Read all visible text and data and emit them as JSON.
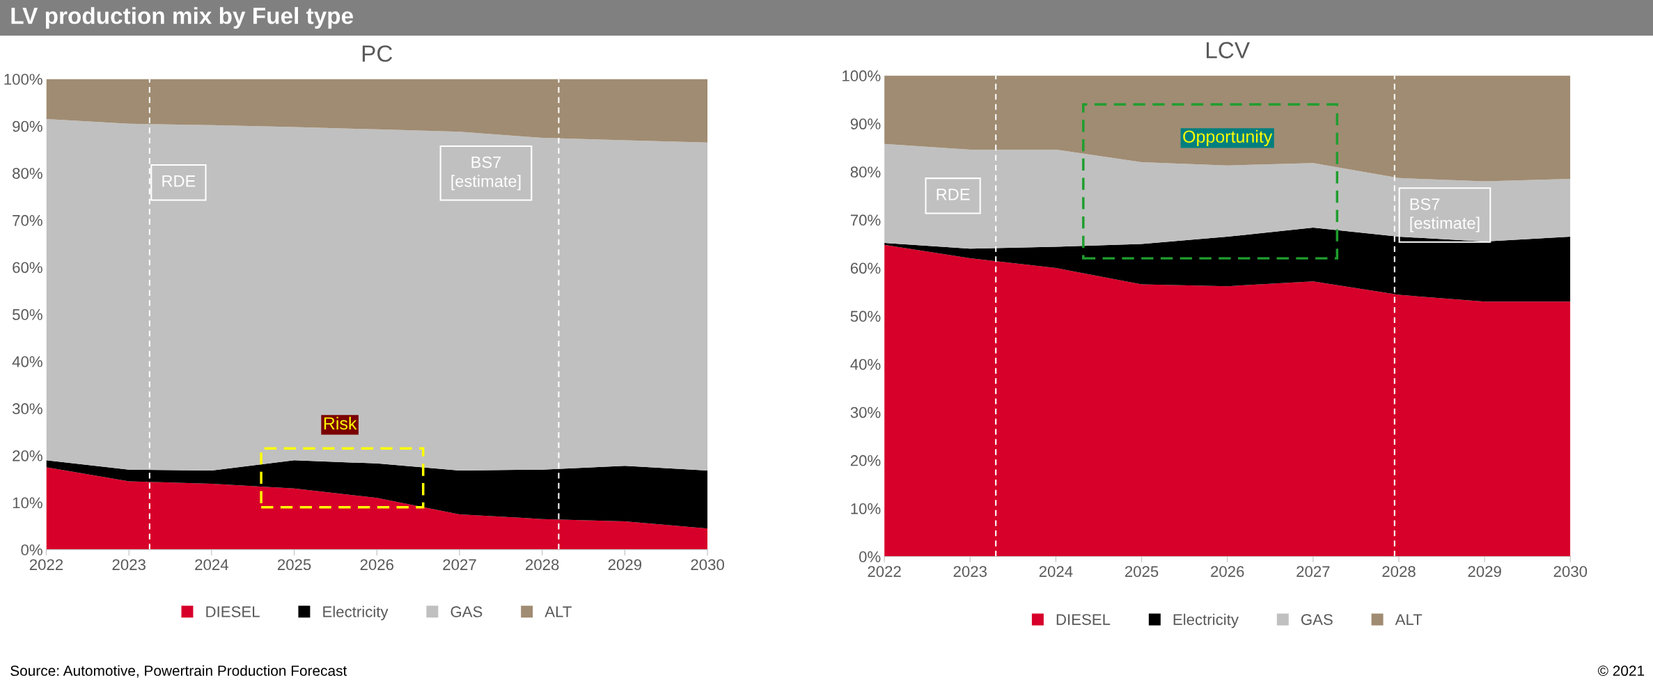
{
  "chart_data": [
    {
      "type": "area",
      "stacked": true,
      "title": "PC",
      "x": [
        2022,
        2023,
        2024,
        2025,
        2026,
        2027,
        2028,
        2029,
        2030
      ],
      "series": [
        {
          "name": "DIESEL",
          "color": "#d7002a",
          "values": [
            17.5,
            14.5,
            14,
            13,
            11,
            7.5,
            6.5,
            6,
            4.5
          ]
        },
        {
          "name": "Electricity",
          "color": "#000000",
          "values": [
            1.5,
            2.5,
            2.8,
            6,
            7.3,
            9.3,
            10.5,
            11.8,
            12.3
          ]
        },
        {
          "name": "GAS",
          "color": "#c0c0c0",
          "values": [
            72.5,
            73.5,
            73.4,
            70.8,
            71,
            72,
            70.5,
            69.2,
            69.7
          ]
        },
        {
          "name": "ALT",
          "color": "#a08c72",
          "values": [
            8.5,
            9.5,
            9.8,
            10.2,
            10.7,
            11.2,
            12.5,
            13,
            13.5
          ]
        }
      ],
      "xlim": [
        2022,
        2030
      ],
      "xticks": [
        2022,
        2023,
        2024,
        2025,
        2026,
        2027,
        2028,
        2029,
        2030
      ],
      "ylim": [
        0,
        100
      ],
      "yticks": [
        {
          "value": 0,
          "label": "0%"
        },
        {
          "value": 10,
          "label": "10%"
        },
        {
          "value": 20,
          "label": "20%"
        },
        {
          "value": 30,
          "label": "30%"
        },
        {
          "value": 40,
          "label": "40%"
        },
        {
          "value": 50,
          "label": "50%"
        },
        {
          "value": 60,
          "label": "60%"
        },
        {
          "value": 70,
          "label": "70%"
        },
        {
          "value": 80,
          "label": "80%"
        },
        {
          "value": 90,
          "label": "90%"
        },
        {
          "value": 100,
          "label": "100%"
        }
      ],
      "ref_lines": [
        {
          "axis": "x",
          "value": 2023.25,
          "color": "#ffffff",
          "line_style": "dashed",
          "label": "RDE"
        },
        {
          "axis": "x",
          "value": 2028.2,
          "color": "#ffffff",
          "line_style": "dashed",
          "label": "BS7\n[estimate]"
        }
      ],
      "annotations": [
        "LV production mix by Fuel type",
        "Source: Automotive, Powertrain Production Forecast",
        "Risk"
      ],
      "grid": false,
      "legend": "bottom"
    },
    {
      "type": "area",
      "stacked": true,
      "title": "LCV",
      "x": [
        2022,
        2023,
        2024,
        2025,
        2026,
        2027,
        2028,
        2029,
        2030
      ],
      "series": [
        {
          "name": "DIESEL",
          "color": "#d7002a",
          "values": [
            64.8,
            62,
            60,
            56.6,
            56.2,
            57.2,
            54.4,
            53,
            53
          ]
        },
        {
          "name": "Electricity",
          "color": "#000000",
          "values": [
            0.4,
            2,
            4.4,
            8.4,
            10.3,
            11.2,
            12.1,
            12.5,
            13.5
          ]
        },
        {
          "name": "GAS",
          "color": "#c0c0c0",
          "values": [
            20.6,
            20.6,
            20.2,
            17,
            14.8,
            13.4,
            12.2,
            12.5,
            12
          ]
        },
        {
          "name": "ALT",
          "color": "#a08c72",
          "values": [
            14.2,
            15.4,
            15.4,
            18,
            18.7,
            18.2,
            21.3,
            22,
            21.5
          ]
        }
      ],
      "xlim": [
        2022,
        2030
      ],
      "xticks": [
        2022,
        2023,
        2024,
        2025,
        2026,
        2027,
        2028,
        2029,
        2030
      ],
      "ylim": [
        0,
        100
      ],
      "yticks": [
        {
          "value": 0,
          "label": "0%"
        },
        {
          "value": 10,
          "label": "10%"
        },
        {
          "value": 20,
          "label": "20%"
        },
        {
          "value": 30,
          "label": "30%"
        },
        {
          "value": 40,
          "label": "40%"
        },
        {
          "value": 50,
          "label": "50%"
        },
        {
          "value": 60,
          "label": "60%"
        },
        {
          "value": 70,
          "label": "70%"
        },
        {
          "value": 80,
          "label": "80%"
        },
        {
          "value": 90,
          "label": "90%"
        },
        {
          "value": 100,
          "label": "100%"
        }
      ],
      "ref_lines": [
        {
          "axis": "x",
          "value": 2023.3,
          "color": "#ffffff",
          "line_style": "dashed",
          "label": "RDE"
        },
        {
          "axis": "x",
          "value": 2027.95,
          "color": "#ffffff",
          "line_style": "dashed",
          "label": "BS7\n[estimate]"
        }
      ],
      "annotations": [
        "© 2021",
        "Opportunity"
      ],
      "grid": false,
      "legend": "bottom"
    }
  ]
}
